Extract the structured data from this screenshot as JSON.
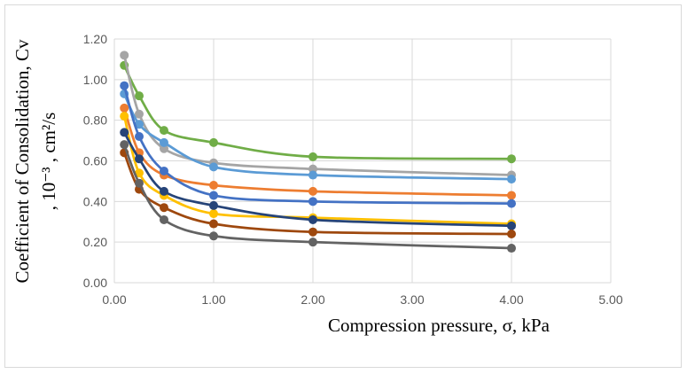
{
  "chart_data": {
    "type": "line",
    "title": "",
    "xlabel": "Compression pressure, σ, kPa",
    "ylabel": "Coefficient of Consolidation, Cv",
    "ylabel_units": ", 10⁻³ , cm²/s",
    "xlim": [
      0,
      5
    ],
    "ylim": [
      0,
      1.2
    ],
    "xticks": [
      "0.00",
      "1.00",
      "2.00",
      "3.00",
      "4.00",
      "5.00"
    ],
    "yticks": [
      "0.00",
      "0.20",
      "0.40",
      "0.60",
      "0.80",
      "1.00",
      "1.20"
    ],
    "grid": true,
    "legend": "none",
    "x": [
      0.1,
      0.25,
      0.5,
      1.0,
      2.0,
      4.0
    ],
    "series": [
      {
        "color": "#70ad47",
        "values": [
          1.07,
          0.92,
          0.75,
          0.69,
          0.62,
          0.61
        ]
      },
      {
        "color": "#a5a5a5",
        "values": [
          1.12,
          0.83,
          0.66,
          0.59,
          0.56,
          0.53
        ]
      },
      {
        "color": "#5b9bd5",
        "values": [
          0.93,
          0.78,
          0.69,
          0.57,
          0.53,
          0.51
        ]
      },
      {
        "color": "#ed7d31",
        "values": [
          0.86,
          0.64,
          0.53,
          0.48,
          0.45,
          0.43
        ]
      },
      {
        "color": "#4472c4",
        "values": [
          0.97,
          0.72,
          0.55,
          0.43,
          0.4,
          0.39
        ]
      },
      {
        "color": "#ffc000",
        "values": [
          0.82,
          0.54,
          0.43,
          0.34,
          0.32,
          0.29
        ]
      },
      {
        "color": "#264478",
        "values": [
          0.74,
          0.61,
          0.45,
          0.38,
          0.31,
          0.28
        ]
      },
      {
        "color": "#9e480e",
        "values": [
          0.64,
          0.46,
          0.37,
          0.29,
          0.25,
          0.24
        ]
      },
      {
        "color": "#636363",
        "values": [
          0.68,
          0.49,
          0.31,
          0.23,
          0.2,
          0.17
        ]
      }
    ]
  }
}
